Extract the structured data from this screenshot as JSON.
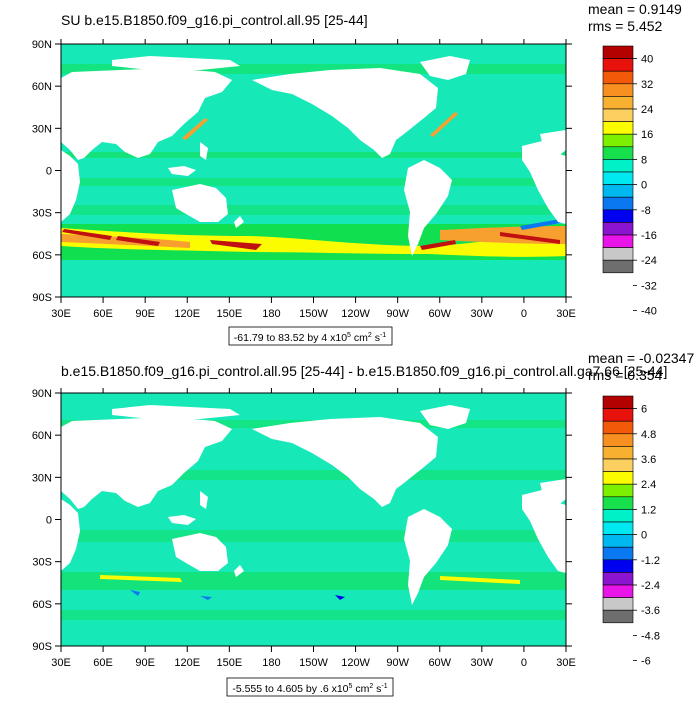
{
  "panels": [
    {
      "title": "SU b.e15.B1850.f09_g16.pi_control.all.95 [25-44]",
      "mean_label": "mean = 0.9149",
      "rms_label": "rms = 5.452",
      "range_base": "-61.79 to 83.52 by 4 x10",
      "range_exp": "5",
      "range_units": " cm",
      "range_units_exp": "2",
      "range_s": " s",
      "range_s_exp": "-1",
      "levels": [
        "40",
        "32",
        "24",
        "16",
        "8",
        "0",
        "-8",
        "-16",
        "-24",
        "-32",
        "-40"
      ]
    },
    {
      "title": "b.e15.B1850.f09_g16.pi_control.all.95 [25-44] - b.e15.B1850.f09_g16.pi_control.all.ga7.66 [25-44]",
      "mean_label": "mean = -0.02347",
      "rms_label": "rms = 0.354",
      "range_base": "-5.555 to 4.605 by .6 x10",
      "range_exp": "5",
      "range_units": " cm",
      "range_units_exp": "2",
      "range_s": " s",
      "range_s_exp": "-1",
      "levels": [
        "6",
        "4.8",
        "3.6",
        "2.4",
        "1.2",
        "0",
        "-1.2",
        "-2.4",
        "-3.6",
        "-4.8",
        "-6"
      ]
    }
  ],
  "lat_labels": [
    "90N",
    "60N",
    "30N",
    "0",
    "30S",
    "60S",
    "90S"
  ],
  "lon_labels": [
    "30E",
    "60E",
    "90E",
    "120E",
    "150E",
    "180",
    "150W",
    "120W",
    "90W",
    "60W",
    "30W",
    "0",
    "30E"
  ],
  "colorbar_colors": [
    "#b30000",
    "#e8120c",
    "#f25a0a",
    "#f79020",
    "#f7b030",
    "#fbd060",
    "#fcfc00",
    "#7cf000",
    "#17e04c",
    "#00f0c8",
    "#00e8f0",
    "#00b8f0",
    "#0a78f0",
    "#0000f0",
    "#8a14d0",
    "#e814e8",
    "#c8c8c8",
    "#6e6e6e"
  ],
  "colors": {
    "ocean_fill": "#17e8b8",
    "ocean_band": "#10e050",
    "land": "#ffffff",
    "warm": "#fcfc00",
    "hot": "#f7a030",
    "red": "#c01010",
    "cold": "#0a78f0"
  }
}
